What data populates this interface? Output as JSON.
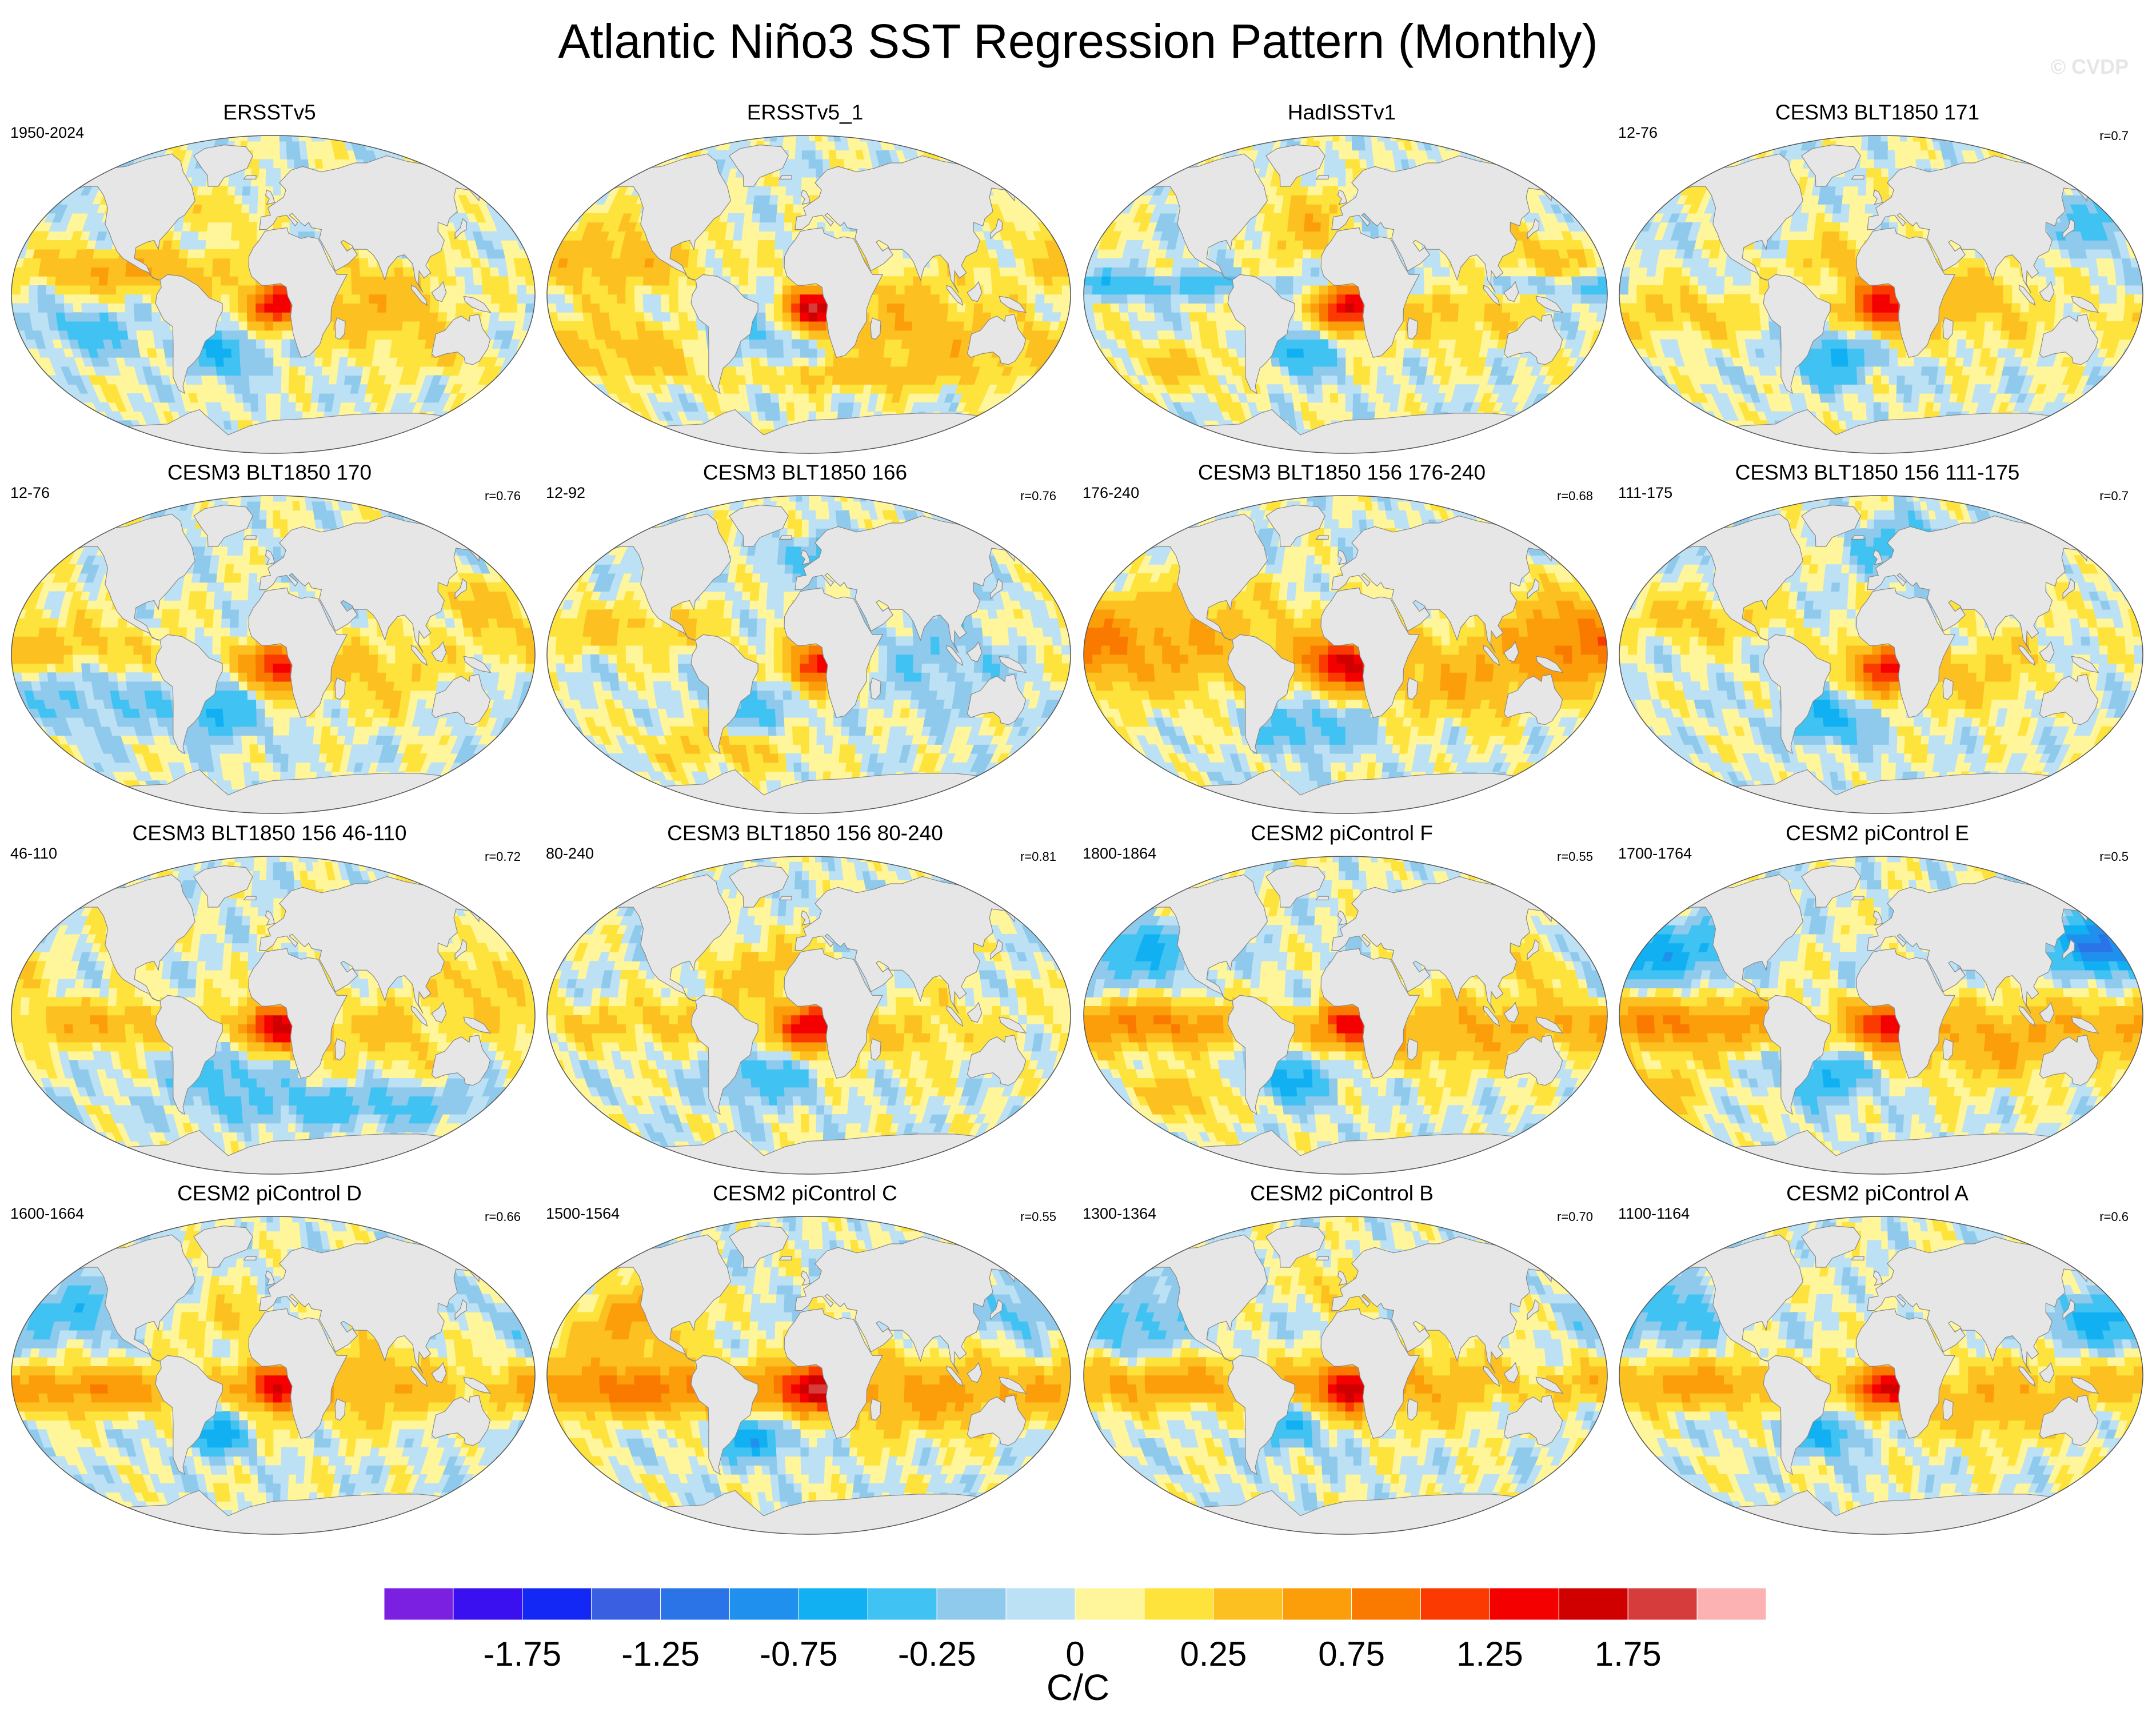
{
  "chart_data": {
    "type": "heatmap",
    "title": "Atlantic Niño3 SST Regression Pattern (Monthly)",
    "watermark": "© CVDP",
    "projection": "Robinson",
    "panels": [
      {
        "title": "ERSSTv5",
        "period": "1950-2024",
        "r": ""
      },
      {
        "title": "ERSSTv5_1",
        "period": "",
        "r": ""
      },
      {
        "title": "HadISSTv1",
        "period": "",
        "r": ""
      },
      {
        "title": "CESM3 BLT1850 171",
        "period": "12-76",
        "r": "r=0.7"
      },
      {
        "title": "CESM3 BLT1850 170",
        "period": "12-76",
        "r": "r=0.76"
      },
      {
        "title": "CESM3 BLT1850 166",
        "period": "12-92",
        "r": "r=0.76"
      },
      {
        "title": "CESM3 BLT1850 156 176-240",
        "period": "176-240",
        "r": "r=0.68"
      },
      {
        "title": "CESM3 BLT1850 156 111-175",
        "period": "111-175",
        "r": "r=0.7"
      },
      {
        "title": "CESM3 BLT1850 156 46-110",
        "period": "46-110",
        "r": "r=0.72"
      },
      {
        "title": "CESM3 BLT1850 156 80-240",
        "period": "80-240",
        "r": "r=0.81"
      },
      {
        "title": "CESM2 piControl F",
        "period": "1800-1864",
        "r": "r=0.55"
      },
      {
        "title": "CESM2 piControl E",
        "period": "1700-1764",
        "r": "r=0.5"
      },
      {
        "title": "CESM2 piControl D",
        "period": "1600-1664",
        "r": "r=0.66"
      },
      {
        "title": "CESM2 piControl C",
        "period": "1500-1564",
        "r": "r=0.55"
      },
      {
        "title": "CESM2 piControl B",
        "period": "1300-1364",
        "r": "r=0.70"
      },
      {
        "title": "CESM2 piControl A",
        "period": "1100-1164",
        "r": "r=0.6"
      }
    ],
    "colorbar": {
      "units": "C/C",
      "levels": [
        -2.0,
        -1.75,
        -1.5,
        -1.25,
        -1.0,
        -0.75,
        -0.5,
        -0.25,
        -0.1,
        0,
        0.1,
        0.25,
        0.5,
        0.75,
        1.0,
        1.25,
        1.5,
        1.75,
        2.0
      ],
      "colors": [
        "#7b1fe0",
        "#3a10f0",
        "#1428f5",
        "#3a5fe0",
        "#2a74e8",
        "#2090ee",
        "#10b0f2",
        "#40c2f2",
        "#8fcaec",
        "#bde1f4",
        "#fff59a",
        "#fde33c",
        "#fcc020",
        "#fb9e0a",
        "#fa7a00",
        "#fa3a00",
        "#f50000",
        "#d10000",
        "#d63c3c",
        "#fcb2b2"
      ],
      "tick_values": [
        -1.75,
        -1.25,
        -0.75,
        -0.25,
        0,
        0.25,
        0.75,
        1.25,
        1.75
      ],
      "tick_labels": [
        "-1.75",
        "-1.25",
        "-0.75",
        "-0.25",
        "0",
        "0.25",
        "0.75",
        "1.25",
        "1.75"
      ]
    }
  },
  "map_style": {
    "land": "#e6e6e6",
    "coast": "#888888",
    "background_ocean": "#fff59a"
  }
}
